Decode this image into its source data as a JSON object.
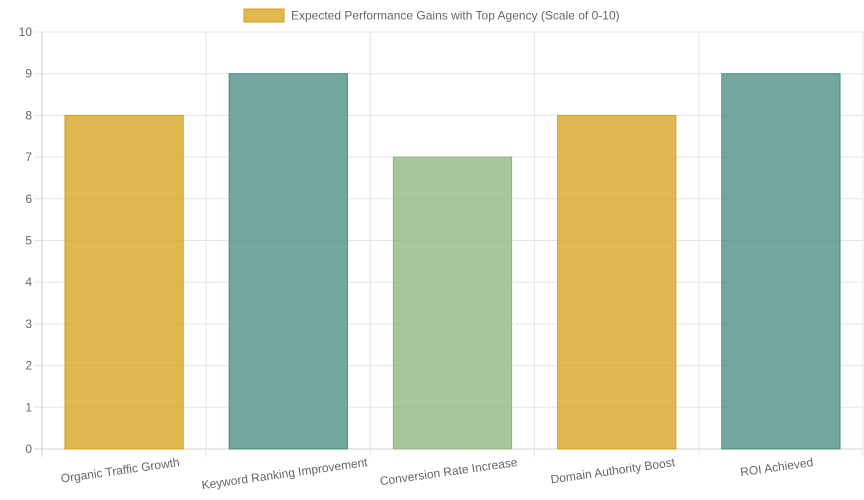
{
  "chart_data": {
    "type": "bar",
    "categories": [
      "Organic Traffic Growth",
      "Keyword Ranking Improvement",
      "Conversion Rate Increase",
      "Domain Authority Boost",
      "ROI Achieved"
    ],
    "series": [
      {
        "name": "Expected Performance Gains with Top Agency (Scale of 0-10)",
        "values": [
          8,
          9,
          7,
          8,
          9
        ]
      }
    ],
    "bar_colors": [
      "#d4a017",
      "#458b7f",
      "#8cb47a",
      "#d4a017",
      "#458b7f"
    ],
    "legend_color": "#d4a017",
    "ylim": [
      0,
      10
    ],
    "yticks": [
      0,
      1,
      2,
      3,
      4,
      5,
      6,
      7,
      8,
      9,
      10
    ],
    "grid": true,
    "legend_position": "top-center"
  }
}
